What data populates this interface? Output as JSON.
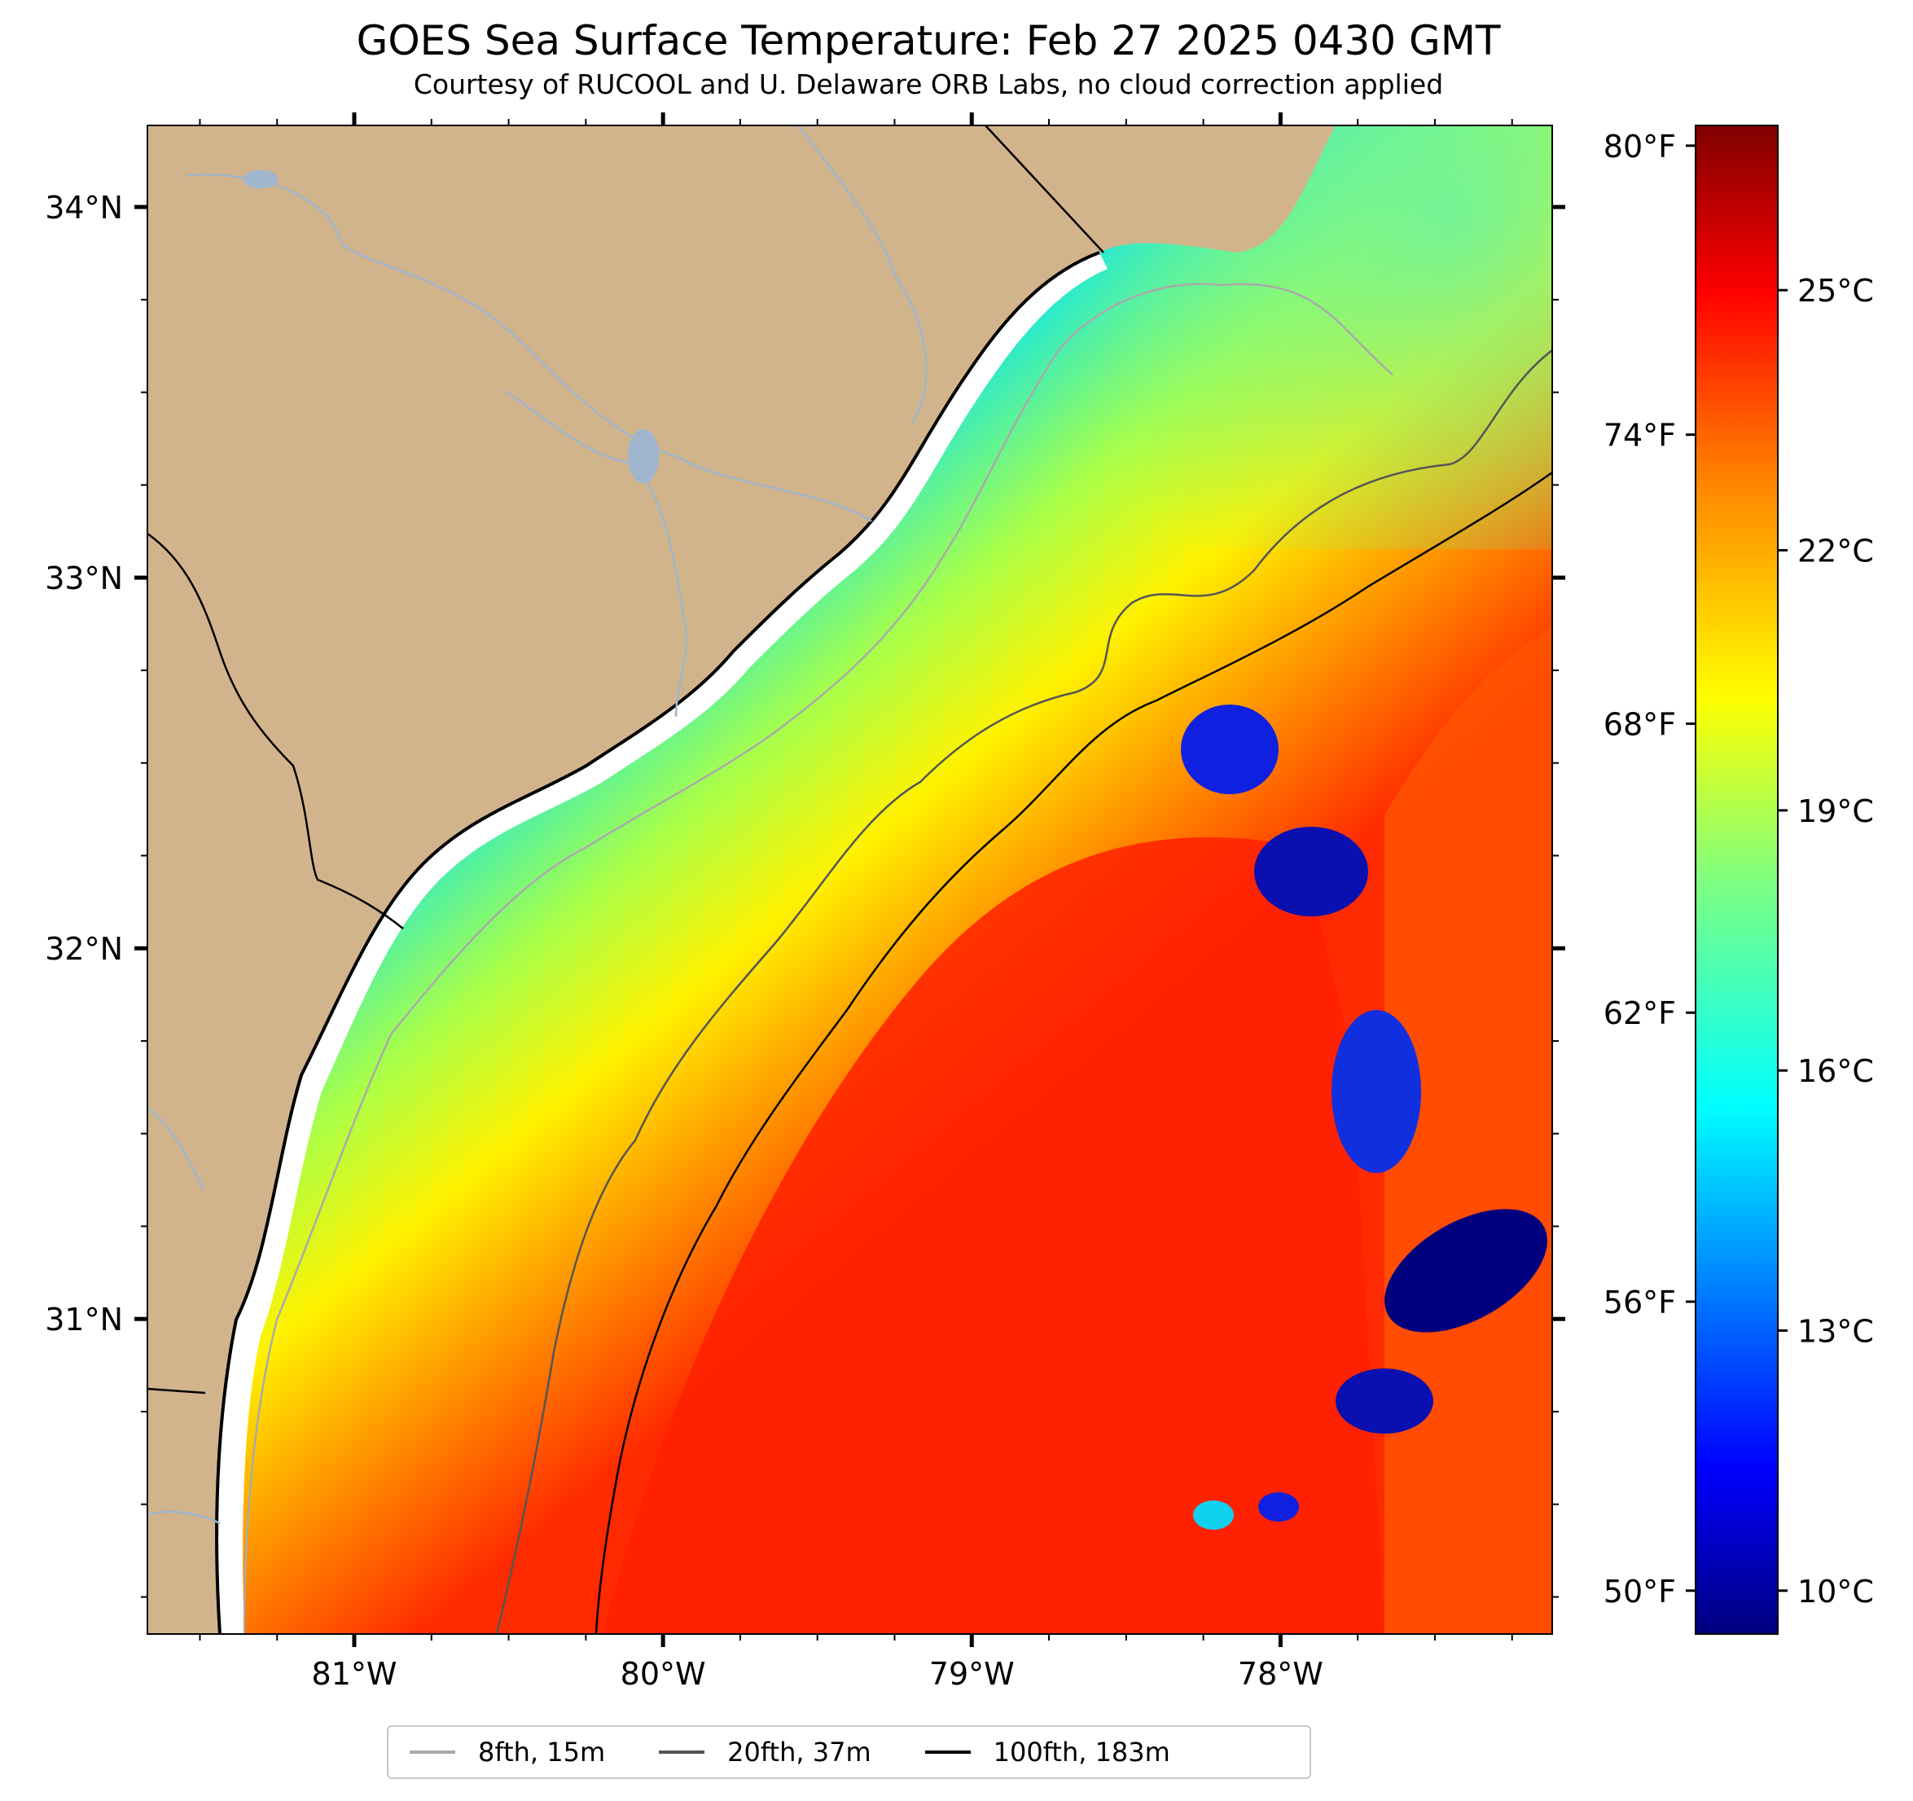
{
  "title": "GOES Sea Surface Temperature: Feb 27 2025 0430 GMT",
  "subtitle": "Courtesy of RUCOOL and U. Delaware ORB Labs, no cloud correction applied",
  "map": {
    "lon_range": [
      -81.67,
      -77.12
    ],
    "lat_range": [
      30.15,
      34.22
    ],
    "lat_ticks": [
      {
        "value": 34,
        "label": "34°N"
      },
      {
        "value": 33,
        "label": "33°N"
      },
      {
        "value": 32,
        "label": "32°N"
      },
      {
        "value": 31,
        "label": "31°N"
      }
    ],
    "lon_ticks": [
      {
        "value": -81,
        "label": "81°W"
      },
      {
        "value": -80,
        "label": "80°W"
      },
      {
        "value": -79,
        "label": "79°W"
      },
      {
        "value": -78,
        "label": "78°W"
      }
    ],
    "colors": {
      "land": "#d2b48c",
      "coast_gap": "#ffffff",
      "coastline": "#000000",
      "rivers": "#9fb6cd"
    }
  },
  "colorbar": {
    "range_c": [
      9.5,
      26.9
    ],
    "celsius_ticks": [
      {
        "value": 25,
        "label": "25°C"
      },
      {
        "value": 22,
        "label": "22°C"
      },
      {
        "value": 19,
        "label": "19°C"
      },
      {
        "value": 16,
        "label": "16°C"
      },
      {
        "value": 13,
        "label": "13°C"
      },
      {
        "value": 10,
        "label": "10°C"
      }
    ],
    "fahrenheit_ticks": [
      {
        "value": 80,
        "label": "80°F"
      },
      {
        "value": 74,
        "label": "74°F"
      },
      {
        "value": 68,
        "label": "68°F"
      },
      {
        "value": 62,
        "label": "62°F"
      },
      {
        "value": 56,
        "label": "56°F"
      },
      {
        "value": 50,
        "label": "50°F"
      }
    ],
    "colormap": [
      "#00007f",
      "#0000ff",
      "#007fff",
      "#00ffff",
      "#7fff7f",
      "#ffff00",
      "#ff7f00",
      "#ff0000",
      "#7f0000"
    ]
  },
  "legend": {
    "items": [
      {
        "label": "8fth, 15m",
        "color": "#aaaaaa"
      },
      {
        "label": "20fth, 37m",
        "color": "#555555"
      },
      {
        "label": "100fth, 183m",
        "color": "#000000"
      }
    ]
  }
}
